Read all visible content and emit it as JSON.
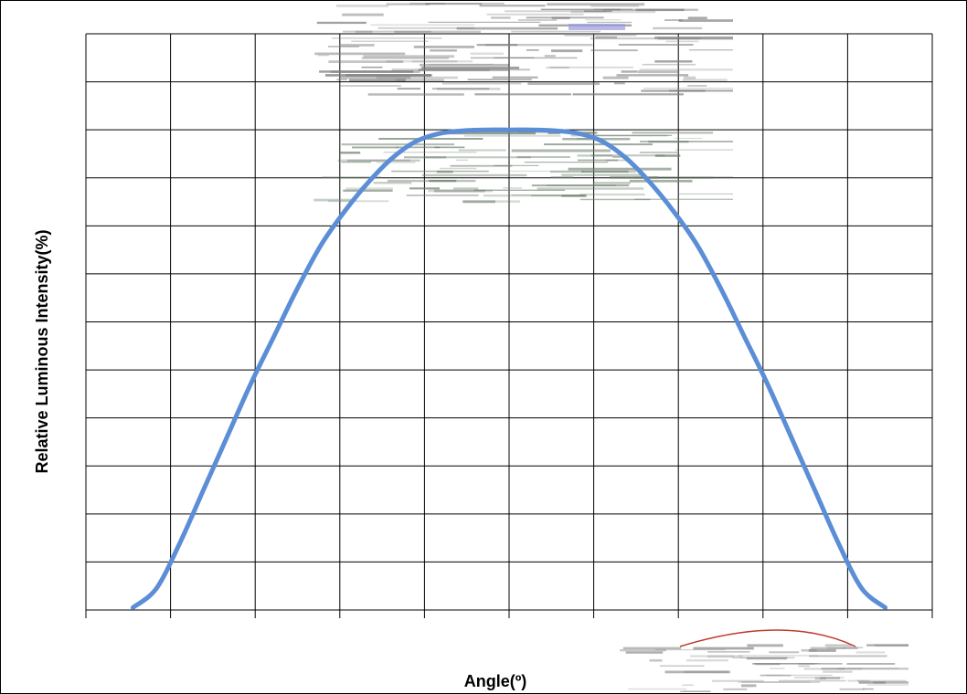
{
  "chart_data": {
    "type": "line",
    "title": "",
    "xlabel": "Angle(º)",
    "ylabel": "Relative Luminous Intensity(%)",
    "x_grid_divisions": 10,
    "y_grid_divisions": 12,
    "xlim": [
      -90,
      90
    ],
    "ylim": [
      0,
      120
    ],
    "grid": true,
    "tick_labels_visible": false,
    "series": [
      {
        "color": "#5B8ED6",
        "x": [
          -80,
          -75,
          -70,
          -65,
          -60,
          -55,
          -50,
          -45,
          -40,
          -35,
          -30,
          -25,
          -20,
          -15,
          -10,
          -5,
          0,
          5,
          10,
          15,
          20,
          25,
          30,
          35,
          40,
          45,
          50,
          55,
          60,
          65,
          70,
          75,
          80
        ],
        "y": [
          0.5,
          4.5,
          14,
          25,
          36,
          47,
          57,
          67,
          76,
          83,
          89,
          94,
          97.5,
          99.2,
          99.8,
          100,
          100,
          100,
          99.8,
          99.2,
          97.5,
          94,
          89,
          83,
          76,
          67,
          57,
          47,
          36,
          25,
          14,
          4.5,
          0.5
        ]
      }
    ]
  },
  "colors": {
    "curve": "#5B8ED6",
    "grid": "#000000",
    "background": "#ffffff"
  }
}
